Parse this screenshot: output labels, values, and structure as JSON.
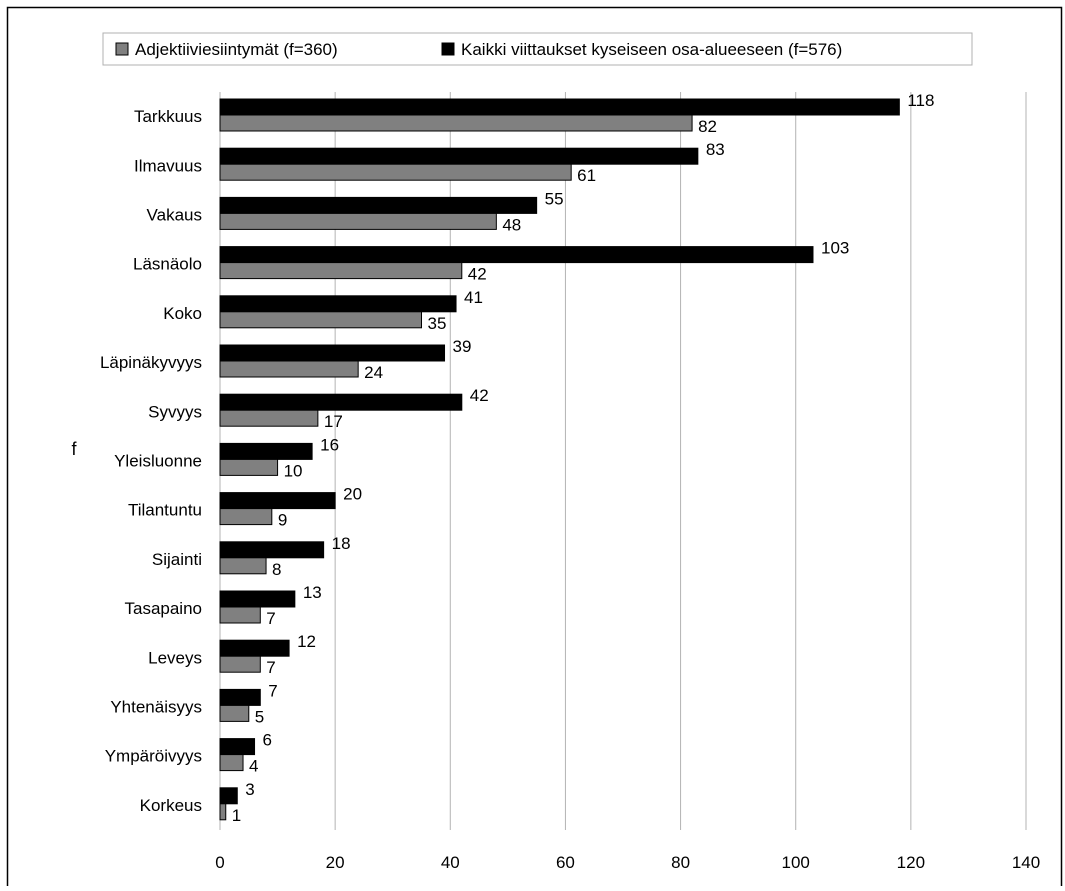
{
  "chart_data": {
    "type": "bar",
    "orientation": "horizontal",
    "ylabel": "f",
    "xlim": [
      0,
      140
    ],
    "xticks": [
      0,
      20,
      40,
      60,
      80,
      100,
      120,
      140
    ],
    "grid": "vertical",
    "legend_position": "top",
    "categories": [
      "Tarkkuus",
      "Ilmavuus",
      "Vakaus",
      "Läsnäolo",
      "Koko",
      "Läpinäkyvyys",
      "Syvyys",
      "Yleisluonne",
      "Tilantuntu",
      "Sijainti",
      "Tasapaino",
      "Leveys",
      "Yhtenäisyys",
      "Ympäröivyys",
      "Korkeus"
    ],
    "series": [
      {
        "name": "Kaikki viittaukset kyseiseen osa-alueeseen (f=576)",
        "color": "#000000",
        "values": [
          118,
          83,
          55,
          103,
          41,
          39,
          42,
          16,
          20,
          18,
          13,
          12,
          7,
          6,
          3
        ]
      },
      {
        "name": "Adjektiiviesiintymät (f=360)",
        "color": "#808080",
        "values": [
          82,
          61,
          48,
          42,
          35,
          24,
          17,
          10,
          9,
          8,
          7,
          7,
          5,
          4,
          1
        ]
      }
    ],
    "legend_order": [
      1,
      0
    ]
  }
}
